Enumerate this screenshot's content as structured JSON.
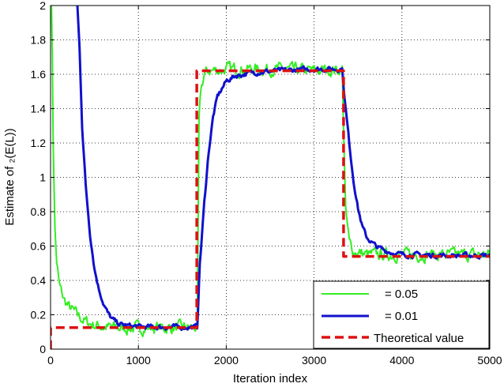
{
  "chart_data": {
    "type": "line",
    "title": "",
    "xlabel": "Iteration index",
    "ylabel": "Estimate of  ₂(E(L))",
    "xlim": [
      0,
      5000
    ],
    "ylim": [
      0,
      2
    ],
    "xticks": [
      "0",
      "1000",
      "2000",
      "3000",
      "4000",
      "5000"
    ],
    "yticks": [
      "0",
      "0.2",
      "0.4",
      "0.6",
      "0.8",
      "1",
      "1.2",
      "1.4",
      "1.6",
      "1.8",
      "2"
    ],
    "grid": true,
    "legend_position": "bottom-right",
    "series": [
      {
        "name": "= 0.05",
        "color": "#33ee22",
        "noise": 0.022,
        "points": [
          [
            0,
            2.05
          ],
          [
            15,
            2.0
          ],
          [
            30,
            1.2
          ],
          [
            50,
            0.7
          ],
          [
            70,
            0.5
          ],
          [
            100,
            0.37
          ],
          [
            150,
            0.29
          ],
          [
            200,
            0.25
          ],
          [
            300,
            0.2
          ],
          [
            400,
            0.16
          ],
          [
            500,
            0.14
          ],
          [
            600,
            0.13
          ],
          [
            700,
            0.125
          ],
          [
            800,
            0.122
          ],
          [
            1000,
            0.123
          ],
          [
            1200,
            0.125
          ],
          [
            1400,
            0.125
          ],
          [
            1600,
            0.125
          ],
          [
            1670,
            0.125
          ],
          [
            1690,
            1.3
          ],
          [
            1710,
            1.5
          ],
          [
            1750,
            1.6
          ],
          [
            1800,
            1.62
          ],
          [
            2000,
            1.63
          ],
          [
            2500,
            1.63
          ],
          [
            3000,
            1.62
          ],
          [
            3320,
            1.63
          ],
          [
            3340,
            1.2
          ],
          [
            3360,
            0.8
          ],
          [
            3400,
            0.62
          ],
          [
            3450,
            0.57
          ],
          [
            3600,
            0.55
          ],
          [
            4000,
            0.55
          ],
          [
            4500,
            0.55
          ],
          [
            5000,
            0.55
          ]
        ]
      },
      {
        "name": "= 0.01",
        "color": "#1111cc",
        "noise": 0.009,
        "points": [
          [
            300,
            2.05
          ],
          [
            330,
            1.75
          ],
          [
            360,
            1.3
          ],
          [
            400,
            0.95
          ],
          [
            450,
            0.67
          ],
          [
            500,
            0.47
          ],
          [
            550,
            0.35
          ],
          [
            600,
            0.27
          ],
          [
            650,
            0.21
          ],
          [
            700,
            0.175
          ],
          [
            750,
            0.155
          ],
          [
            800,
            0.143
          ],
          [
            900,
            0.135
          ],
          [
            1000,
            0.13
          ],
          [
            1200,
            0.128
          ],
          [
            1400,
            0.128
          ],
          [
            1670,
            0.128
          ],
          [
            1700,
            0.5
          ],
          [
            1750,
            0.85
          ],
          [
            1800,
            1.15
          ],
          [
            1850,
            1.35
          ],
          [
            1900,
            1.47
          ],
          [
            2000,
            1.56
          ],
          [
            2100,
            1.59
          ],
          [
            2300,
            1.61
          ],
          [
            2600,
            1.62
          ],
          [
            3000,
            1.63
          ],
          [
            3320,
            1.63
          ],
          [
            3350,
            1.45
          ],
          [
            3400,
            1.2
          ],
          [
            3450,
            0.98
          ],
          [
            3500,
            0.82
          ],
          [
            3550,
            0.71
          ],
          [
            3600,
            0.65
          ],
          [
            3700,
            0.6
          ],
          [
            3800,
            0.575
          ],
          [
            3900,
            0.56
          ],
          [
            4000,
            0.55
          ],
          [
            4500,
            0.545
          ],
          [
            5000,
            0.545
          ]
        ]
      },
      {
        "name": "Theoretical value",
        "color": "#dd1111",
        "dashed": true,
        "points": [
          [
            0,
            0
          ],
          [
            0,
            0.125
          ],
          [
            1665,
            0.125
          ],
          [
            1665,
            1.62
          ],
          [
            3335,
            1.62
          ],
          [
            3335,
            0.54
          ],
          [
            5000,
            0.54
          ]
        ]
      }
    ]
  }
}
